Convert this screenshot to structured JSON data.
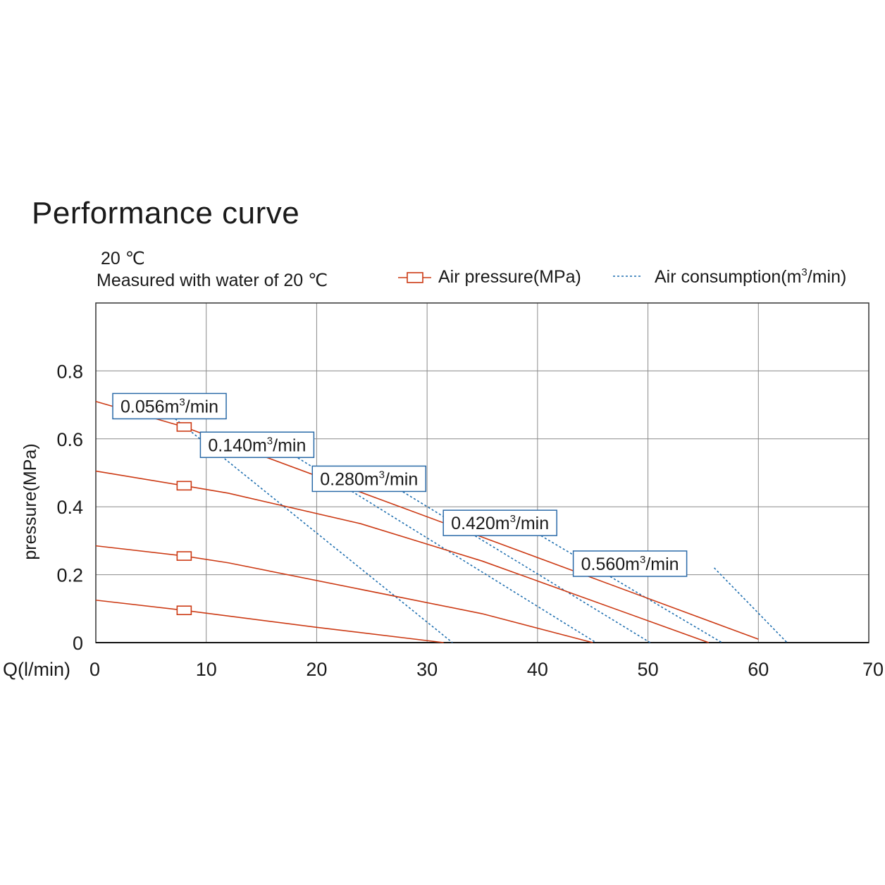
{
  "title": "Performance curve",
  "temperature_label": "20 ℃",
  "measurement_note": "Measured with water of 20 ℃",
  "legend": {
    "pressure": "Air pressure(MPa)",
    "consumption_prefix": "Air consumption(m",
    "consumption_sup": "3",
    "consumption_suffix": "/min)"
  },
  "colors": {
    "pressure_line": "#cc3a14",
    "consumption_line": "#1f6fb0",
    "grid": "#8a8a8a",
    "label_border": "#2a6aa8"
  },
  "chart_data": {
    "type": "line",
    "title": "Performance curve",
    "xlabel": "Q(l/min)",
    "ylabel": "pressure(MPa)",
    "xlim": [
      0,
      70
    ],
    "ylim": [
      0,
      1.0
    ],
    "xticks": [
      "0",
      "10",
      "20",
      "30",
      "40",
      "50",
      "60",
      "70"
    ],
    "yticks": [
      "0",
      "0.2",
      "0.4",
      "0.6",
      "0.8"
    ],
    "grid": true,
    "legend_position": "top-right",
    "pressure_curves": [
      {
        "points": [
          [
            0,
            0.71
          ],
          [
            8,
            0.635
          ],
          [
            60,
            0.01
          ]
        ]
      },
      {
        "points": [
          [
            0,
            0.505
          ],
          [
            8,
            0.462
          ],
          [
            12,
            0.44
          ],
          [
            24,
            0.35
          ],
          [
            35,
            0.24
          ],
          [
            55.5,
            0.0
          ]
        ]
      },
      {
        "points": [
          [
            0,
            0.285
          ],
          [
            8,
            0.255
          ],
          [
            12,
            0.235
          ],
          [
            35,
            0.085
          ],
          [
            45,
            0.0
          ]
        ]
      },
      {
        "points": [
          [
            0,
            0.125
          ],
          [
            8,
            0.095
          ],
          [
            20,
            0.045
          ],
          [
            31.5,
            0.0
          ]
        ]
      }
    ],
    "consumption_curves": [
      {
        "label": "0.056m",
        "label_sup": "3",
        "label_suffix": "/min",
        "points": [
          [
            6,
            0.69
          ],
          [
            32.3,
            0.0
          ]
        ]
      },
      {
        "label": "0.140m",
        "label_sup": "3",
        "label_suffix": "/min",
        "points": [
          [
            17,
            0.57
          ],
          [
            45.3,
            0.0
          ]
        ]
      },
      {
        "label": "0.280m",
        "label_sup": "3",
        "label_suffix": "/min",
        "points": [
          [
            26.5,
            0.47
          ],
          [
            50.2,
            0.0
          ]
        ]
      },
      {
        "label": "0.420m",
        "label_sup": "3",
        "label_suffix": "/min",
        "points": [
          [
            39,
            0.34
          ],
          [
            56.7,
            0.0
          ]
        ]
      },
      {
        "label": "0.560m",
        "label_sup": "3",
        "label_suffix": "/min",
        "points": [
          [
            56,
            0.22
          ],
          [
            62.6,
            0.0
          ]
        ]
      }
    ]
  }
}
